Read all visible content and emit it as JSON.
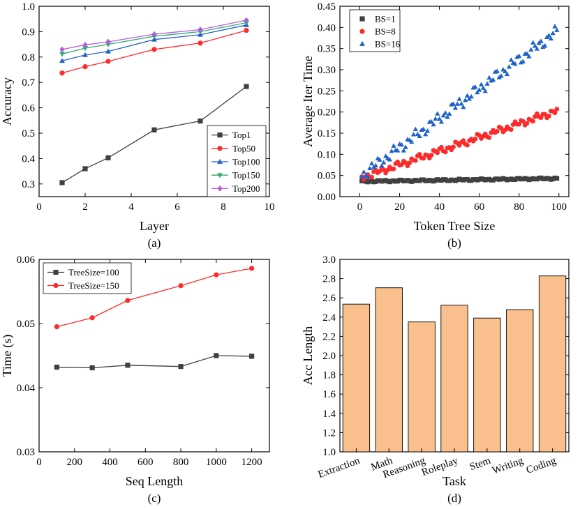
{
  "chart_data": [
    {
      "id": "a",
      "type": "line",
      "caption": "(a)",
      "xlabel": "Layer",
      "ylabel": "Accuracy",
      "xlim": [
        0,
        10
      ],
      "ylim": [
        0.25,
        1.0
      ],
      "xticks": [
        0,
        2,
        4,
        6,
        8,
        10
      ],
      "yticks": [
        0.3,
        0.4,
        0.5,
        0.6,
        0.7,
        0.8,
        0.9,
        1.0
      ],
      "legend_position": "bottom-right",
      "x": [
        1,
        2,
        3,
        5,
        7,
        9
      ],
      "series": [
        {
          "name": "Top1",
          "color": "#404040",
          "marker": "square",
          "values": [
            0.305,
            0.36,
            0.403,
            0.513,
            0.548,
            0.684
          ]
        },
        {
          "name": "Top50",
          "color": "#ff2a2a",
          "marker": "circle",
          "values": [
            0.737,
            0.762,
            0.783,
            0.83,
            0.855,
            0.905
          ]
        },
        {
          "name": "Top100",
          "color": "#1f62c8",
          "marker": "triangle-up",
          "values": [
            0.785,
            0.808,
            0.822,
            0.869,
            0.888,
            0.926
          ]
        },
        {
          "name": "Top150",
          "color": "#33aa6e",
          "marker": "triangle-down",
          "values": [
            0.812,
            0.835,
            0.85,
            0.882,
            0.9,
            0.935
          ]
        },
        {
          "name": "Top200",
          "color": "#b65be0",
          "marker": "diamond",
          "values": [
            0.83,
            0.848,
            0.86,
            0.89,
            0.908,
            0.945
          ]
        }
      ]
    },
    {
      "id": "b",
      "type": "scatter",
      "caption": "(b)",
      "xlabel": "Token Tree Size",
      "ylabel": "Average Iter Time",
      "xlim": [
        -10,
        105
      ],
      "ylim": [
        0,
        0.45
      ],
      "xticks": [
        0,
        20,
        40,
        60,
        80,
        100
      ],
      "yticks": [
        0.0,
        0.05,
        0.1,
        0.15,
        0.2,
        0.25,
        0.3,
        0.35,
        0.4,
        0.45
      ],
      "legend_position": "top-left",
      "series": [
        {
          "name": "BS=1",
          "color": "#404040",
          "marker": "square",
          "x_start": 1,
          "x_end": 99,
          "count": 99,
          "y_start": 0.036,
          "y_end": 0.043,
          "jitter": 0.0015
        },
        {
          "name": "BS=8",
          "color": "#ff2a2a",
          "marker": "circle",
          "x_start": 1,
          "x_end": 99,
          "count": 99,
          "y_start": 0.045,
          "y_end": 0.203,
          "jitter": 0.006
        },
        {
          "name": "BS=16",
          "color": "#1f62c8",
          "marker": "triangle-up",
          "x_start": 1,
          "x_end": 99,
          "count": 99,
          "y_start": 0.05,
          "y_end": 0.39,
          "jitter": 0.01
        }
      ]
    },
    {
      "id": "c",
      "type": "line",
      "caption": "(c)",
      "xlabel": "Seq Length",
      "ylabel": "Time (s)",
      "xlim": [
        0,
        1300
      ],
      "ylim": [
        0.03,
        0.06
      ],
      "xticks": [
        0,
        200,
        400,
        600,
        800,
        1000,
        1200
      ],
      "yticks": [
        0.03,
        0.04,
        0.05,
        0.06
      ],
      "legend_position": "top-left",
      "x": [
        100,
        300,
        500,
        800,
        1000,
        1200
      ],
      "series": [
        {
          "name": "TreeSize=100",
          "color": "#404040",
          "marker": "square",
          "values": [
            0.0432,
            0.0431,
            0.0435,
            0.0433,
            0.045,
            0.0449
          ]
        },
        {
          "name": "TreeSize=150",
          "color": "#ff2a2a",
          "marker": "circle",
          "values": [
            0.0495,
            0.0509,
            0.0536,
            0.0559,
            0.0576,
            0.0586
          ]
        }
      ]
    },
    {
      "id": "d",
      "type": "bar",
      "caption": "(d)",
      "xlabel": "Task",
      "ylabel": "Acc Length",
      "ylim": [
        1.0,
        3.0
      ],
      "yticks": [
        1.0,
        1.2,
        1.4,
        1.6,
        1.8,
        2.0,
        2.2,
        2.4,
        2.6,
        2.8,
        3.0
      ],
      "bar_color": "#f9c08d",
      "categories": [
        "Extraction",
        "Math",
        "Reasoning",
        "Roleplay",
        "Stem",
        "Writing",
        "Coding"
      ],
      "values": [
        2.535,
        2.705,
        2.35,
        2.525,
        2.39,
        2.478,
        2.828
      ]
    }
  ]
}
